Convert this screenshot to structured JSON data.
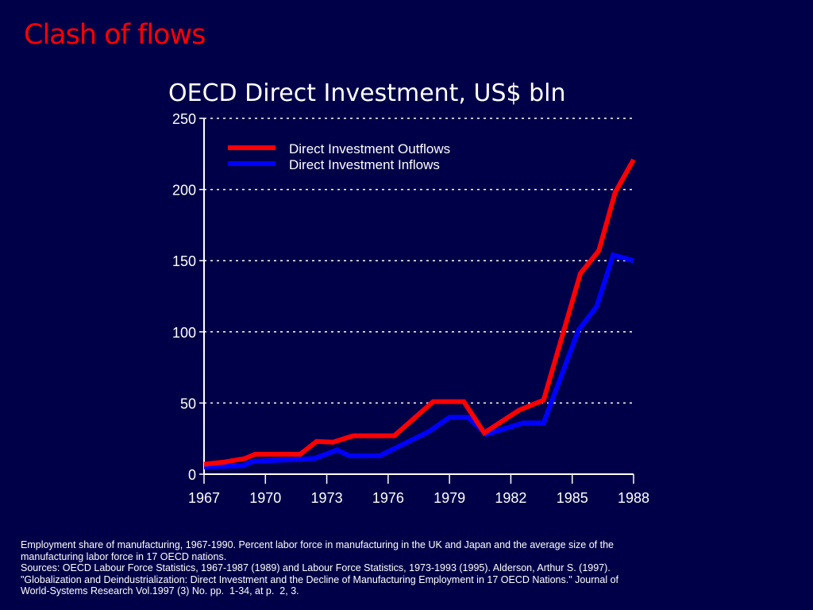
{
  "slide": {
    "title": "Clash of flows",
    "footnote": [
      "Employment share of manufacturing, 1967-1990. Percent labor force in manufacturing in the UK and Japan and the average size of the manufacturing labor force in 17 OECD nations.",
      "Sources: OECD Labour Force Statistics, 1967-1987 (1989) and Labour Force Statistics, 1973-1993 (1995). Alderson, Arthur S. (1997). \"Globalization and Deindustrialization: Direct Investment and the Decline of Manufacturing Employment in 17 OECD Nations.\" Journal of World-Systems Research Vol.1997 (3) No. pp.  1-34, at p.  2, 3."
    ]
  },
  "chart_data": {
    "type": "line",
    "title": "OECD Direct Investment, US$ bln",
    "xlabel": "",
    "ylabel": "",
    "xlim": [
      1967,
      1988
    ],
    "ylim": [
      0,
      250
    ],
    "xticks": [
      1967,
      1970,
      1973,
      1976,
      1979,
      1982,
      1985,
      1988
    ],
    "yticks": [
      0,
      50,
      100,
      150,
      200,
      250
    ],
    "grid": "horizontal dotted",
    "legend_position": "top-left",
    "series": [
      {
        "name": "Direct Investment Outflows",
        "color": "#ff0000",
        "x": [
          1967,
          1968,
          1969,
          1969.5,
          1971.7,
          1972.5,
          1973.3,
          1974.3,
          1976.3,
          1978.2,
          1979.7,
          1980.7,
          1982.4,
          1983.6,
          1985.4,
          1986.3,
          1987.1,
          1988
        ],
        "y": [
          7,
          8.5,
          11,
          14,
          14,
          23,
          22.5,
          27,
          27,
          51,
          51,
          29,
          45,
          52,
          141,
          157,
          198,
          221
        ]
      },
      {
        "name": "Direct Investment Inflows",
        "color": "#0000ff",
        "x": [
          1967,
          1968.9,
          1969.4,
          1972.4,
          1973.5,
          1974.1,
          1975.6,
          1978,
          1979,
          1979.9,
          1980.8,
          1982.6,
          1983.6,
          1985.3,
          1986.2,
          1987,
          1988
        ],
        "y": [
          5,
          6,
          9,
          11,
          17,
          13,
          13,
          30,
          40,
          40,
          28,
          36,
          36,
          101,
          118,
          154,
          150
        ]
      }
    ]
  }
}
